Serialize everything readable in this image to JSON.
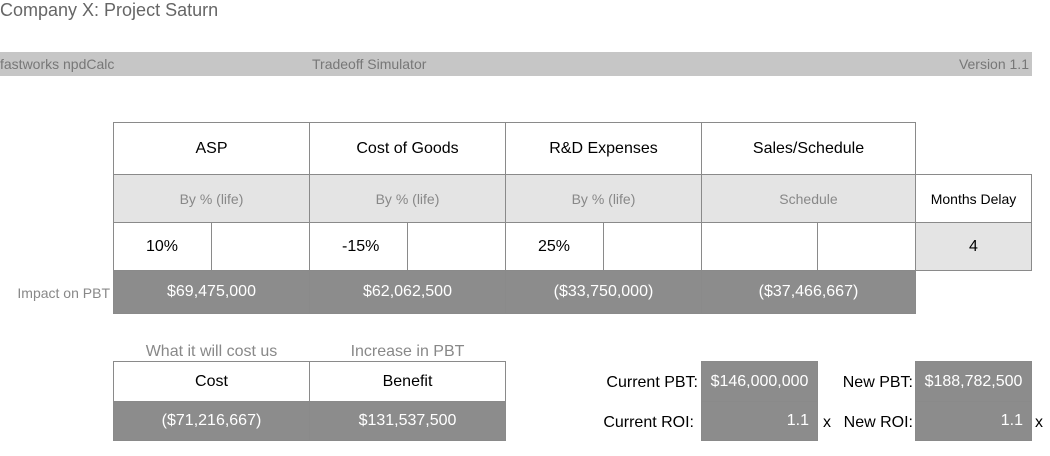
{
  "header": {
    "title": "Company X: Project Saturn"
  },
  "toolbar": {
    "app_name": "fastworks npdCalc",
    "tool_name": "Tradeoff Simulator",
    "version": "Version 1.1"
  },
  "grid": {
    "columns": [
      {
        "header": "ASP",
        "method": "By % (life)",
        "input": "10%",
        "impact": "$69,475,000"
      },
      {
        "header": "Cost of Goods",
        "method": "By % (life)",
        "input": "-15%",
        "impact": "$62,062,500"
      },
      {
        "header": "R&D Expenses",
        "method": "By % (life)",
        "input": "25%",
        "impact": "($33,750,000)"
      },
      {
        "header": "Sales/Schedule",
        "method": "Schedule",
        "input": "",
        "impact": "($37,466,667)"
      }
    ],
    "months_delay_label": "Months Delay",
    "months_delay_value": "4",
    "impact_row_label": "Impact on PBT"
  },
  "summary": {
    "cost_caption": "What it will cost us",
    "benefit_caption": "Increase in PBT",
    "cost_header": "Cost",
    "benefit_header": "Benefit",
    "cost_value": "($71,216,667)",
    "benefit_value": "$131,537,500"
  },
  "metrics": {
    "current_pbt_label": "Current PBT:",
    "current_pbt_value": "$146,000,000",
    "new_pbt_label": "New PBT:",
    "new_pbt_value": "$188,782,500",
    "current_roi_label": "Current ROI:",
    "current_roi_value": "1.1",
    "new_roi_label": "New ROI:",
    "new_roi_value": "1.1",
    "roi_suffix": "x"
  }
}
